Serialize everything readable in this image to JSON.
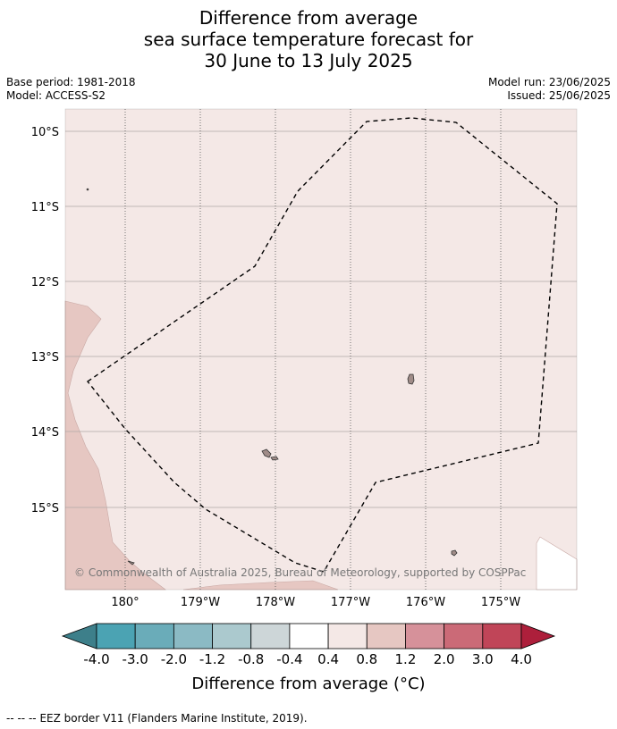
{
  "title": {
    "line1": "Difference from average",
    "line2": "sea surface temperature forecast for",
    "line3": "30 June to 13 July 2025"
  },
  "meta": {
    "base_period": "Base period: 1981-2018",
    "model": "Model: ACCESS-S2",
    "model_run": "Model run: 23/06/2025",
    "issued": "Issued: 25/06/2025"
  },
  "map": {
    "latitude_labels": [
      "10°S",
      "11°S",
      "12°S",
      "13°S",
      "14°S",
      "15°S"
    ],
    "longitude_labels": [
      "180°",
      "179°W",
      "178°W",
      "177°W",
      "176°W",
      "175°W"
    ],
    "copyright": "© Commonwealth of Australia 2025, Bureau of Meteorology, supported by COSPPac",
    "colors": {
      "anomaly_0_4_to_0_8": "#f4e8e6",
      "anomaly_0_8_to_1_2": "#e6c7c2",
      "land": "#a08c88",
      "grid": "#b0a8a6",
      "eez_border": "#000000"
    }
  },
  "colorbar": {
    "tick_labels": [
      "-4.0",
      "-3.0",
      "-2.0",
      "-1.2",
      "-0.8",
      "-0.4",
      "0.4",
      "0.8",
      "1.2",
      "2.0",
      "3.0",
      "4.0"
    ],
    "colors": [
      "#3d7f8a",
      "#4ba3b3",
      "#6aacb9",
      "#8bbac4",
      "#abc9ce",
      "#cdd6d8",
      "#ffffff",
      "#f4e8e6",
      "#e6c7c2",
      "#d6919a",
      "#cb6a77",
      "#c04558",
      "#ad1f3b"
    ],
    "title": "Difference from average (°C)"
  },
  "footer": {
    "legend_symbol": "-- -- --",
    "legend_text": "EEZ border V11 (Flanders Marine Institute, 2019)."
  }
}
